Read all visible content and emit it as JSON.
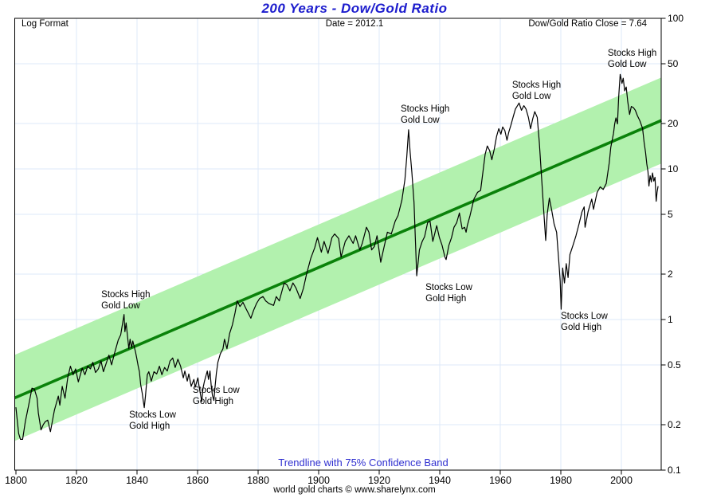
{
  "header": {
    "title": "200 Years - Dow/Gold Ratio",
    "top_left": "Log Format",
    "top_center": "Date = 2012.1",
    "top_right": "Dow/Gold Ratio Close = 7.64"
  },
  "footer": {
    "caption": "Trendline with 75% Confidence Band",
    "credit": "world gold charts © www.sharelynx.com"
  },
  "colors": {
    "title_blue": "#1c1ccd",
    "caption_blue": "#3030d0",
    "band_green": "#b2f1ae",
    "trend_green": "#0a820a",
    "grid_blue": "#dde9f8",
    "data_line": "#000000",
    "axis_black": "#000000"
  },
  "chart_data": {
    "type": "line",
    "title": "200 Years - Dow/Gold Ratio",
    "xlabel": "",
    "ylabel": "",
    "x_axis": {
      "min": 1799.6,
      "max": 2013.2,
      "ticks": [
        1800,
        1820,
        1840,
        1860,
        1880,
        1900,
        1920,
        1940,
        1960,
        1980,
        2000
      ]
    },
    "y_axis": {
      "scale": "log",
      "min": 0.1,
      "max": 100,
      "ticks": [
        {
          "v": 100,
          "label": "100"
        },
        {
          "v": 50,
          "label": "50"
        },
        {
          "v": 20,
          "label": "20"
        },
        {
          "v": 10,
          "label": "10"
        },
        {
          "v": 5,
          "label": "5"
        },
        {
          "v": 2,
          "label": "2"
        },
        {
          "v": 1,
          "label": "1"
        },
        {
          "v": 0.5,
          "label": "0.5"
        },
        {
          "v": 0.2,
          "label": "0.2"
        },
        {
          "v": 0.1,
          "label": "0.1"
        }
      ]
    },
    "grid": true,
    "legend": "none",
    "trendline": {
      "x1": 1800,
      "v1": 0.304,
      "x2": 2012.3,
      "v2": 20.6,
      "band_factor": 1.93
    },
    "series": [
      {
        "name": "Dow/Gold Ratio",
        "points": [
          [
            1800.0,
            0.26
          ],
          [
            1800.9,
            0.175
          ],
          [
            1801.5,
            0.16
          ],
          [
            1802.2,
            0.16
          ],
          [
            1803.1,
            0.21
          ],
          [
            1804.2,
            0.27
          ],
          [
            1805.3,
            0.35
          ],
          [
            1806.1,
            0.345
          ],
          [
            1807.0,
            0.3
          ],
          [
            1807.4,
            0.24
          ],
          [
            1808.3,
            0.185
          ],
          [
            1809.0,
            0.2
          ],
          [
            1809.7,
            0.21
          ],
          [
            1810.5,
            0.215
          ],
          [
            1811.4,
            0.18
          ],
          [
            1812.7,
            0.25
          ],
          [
            1813.6,
            0.29
          ],
          [
            1814.0,
            0.31
          ],
          [
            1814.5,
            0.27
          ],
          [
            1815.3,
            0.36
          ],
          [
            1816.2,
            0.3
          ],
          [
            1817.1,
            0.41
          ],
          [
            1818.0,
            0.49
          ],
          [
            1818.9,
            0.43
          ],
          [
            1819.7,
            0.47
          ],
          [
            1820.6,
            0.385
          ],
          [
            1821.9,
            0.475
          ],
          [
            1822.8,
            0.43
          ],
          [
            1823.7,
            0.49
          ],
          [
            1824.6,
            0.47
          ],
          [
            1825.4,
            0.52
          ],
          [
            1826.3,
            0.445
          ],
          [
            1827.2,
            0.47
          ],
          [
            1828.1,
            0.53
          ],
          [
            1828.9,
            0.45
          ],
          [
            1829.8,
            0.51
          ],
          [
            1830.7,
            0.58
          ],
          [
            1831.6,
            0.5
          ],
          [
            1832.5,
            0.59
          ],
          [
            1833.8,
            0.73
          ],
          [
            1834.6,
            0.79
          ],
          [
            1835.7,
            1.08
          ],
          [
            1836.0,
            0.83
          ],
          [
            1836.4,
            0.95
          ],
          [
            1837.3,
            0.64
          ],
          [
            1837.7,
            0.74
          ],
          [
            1838.2,
            0.65
          ],
          [
            1838.6,
            0.72
          ],
          [
            1839.5,
            0.61
          ],
          [
            1839.9,
            0.555
          ],
          [
            1840.4,
            0.49
          ],
          [
            1840.8,
            0.45
          ],
          [
            1841.2,
            0.37
          ],
          [
            1841.7,
            0.325
          ],
          [
            1842.1,
            0.285
          ],
          [
            1842.4,
            0.26
          ],
          [
            1842.8,
            0.31
          ],
          [
            1843.4,
            0.43
          ],
          [
            1843.9,
            0.45
          ],
          [
            1844.7,
            0.39
          ],
          [
            1845.6,
            0.45
          ],
          [
            1846.5,
            0.435
          ],
          [
            1847.4,
            0.49
          ],
          [
            1848.2,
            0.43
          ],
          [
            1849.1,
            0.48
          ],
          [
            1850.0,
            0.455
          ],
          [
            1850.9,
            0.53
          ],
          [
            1851.8,
            0.555
          ],
          [
            1852.6,
            0.48
          ],
          [
            1853.5,
            0.545
          ],
          [
            1854.4,
            0.49
          ],
          [
            1855.3,
            0.41
          ],
          [
            1855.8,
            0.455
          ],
          [
            1856.6,
            0.39
          ],
          [
            1857.1,
            0.435
          ],
          [
            1857.9,
            0.36
          ],
          [
            1858.8,
            0.4
          ],
          [
            1859.2,
            0.355
          ],
          [
            1860.1,
            0.41
          ],
          [
            1860.5,
            0.36
          ],
          [
            1861.0,
            0.315
          ],
          [
            1861.4,
            0.285
          ],
          [
            1861.8,
            0.35
          ],
          [
            1862.3,
            0.39
          ],
          [
            1863.2,
            0.455
          ],
          [
            1863.6,
            0.4
          ],
          [
            1864.1,
            0.455
          ],
          [
            1864.5,
            0.365
          ],
          [
            1864.9,
            0.315
          ],
          [
            1865.4,
            0.29
          ],
          [
            1865.8,
            0.36
          ],
          [
            1866.2,
            0.44
          ],
          [
            1866.7,
            0.52
          ],
          [
            1867.5,
            0.59
          ],
          [
            1868.4,
            0.64
          ],
          [
            1868.9,
            0.74
          ],
          [
            1869.7,
            0.64
          ],
          [
            1870.6,
            0.81
          ],
          [
            1871.5,
            0.92
          ],
          [
            1872.4,
            1.11
          ],
          [
            1873.1,
            1.33
          ],
          [
            1874.0,
            1.22
          ],
          [
            1875.0,
            1.3
          ],
          [
            1876.0,
            1.18
          ],
          [
            1877.6,
            1.02
          ],
          [
            1878.5,
            1.15
          ],
          [
            1879.5,
            1.28
          ],
          [
            1880.5,
            1.38
          ],
          [
            1881.6,
            1.42
          ],
          [
            1882.5,
            1.33
          ],
          [
            1883.5,
            1.28
          ],
          [
            1885.1,
            1.24
          ],
          [
            1886.0,
            1.42
          ],
          [
            1887.0,
            1.33
          ],
          [
            1888.6,
            1.75
          ],
          [
            1889.5,
            1.7
          ],
          [
            1890.5,
            1.55
          ],
          [
            1891.5,
            1.75
          ],
          [
            1892.5,
            1.62
          ],
          [
            1893.9,
            1.38
          ],
          [
            1895.0,
            1.62
          ],
          [
            1896.0,
            2.0
          ],
          [
            1897.4,
            2.55
          ],
          [
            1898.7,
            3.0
          ],
          [
            1899.6,
            3.5
          ],
          [
            1900.9,
            2.8
          ],
          [
            1901.8,
            3.3
          ],
          [
            1903.1,
            2.75
          ],
          [
            1904.4,
            3.5
          ],
          [
            1905.3,
            3.7
          ],
          [
            1906.6,
            3.45
          ],
          [
            1907.4,
            2.6
          ],
          [
            1908.8,
            3.3
          ],
          [
            1910.0,
            3.6
          ],
          [
            1911.4,
            3.2
          ],
          [
            1912.2,
            3.6
          ],
          [
            1913.6,
            2.9
          ],
          [
            1914.4,
            3.2
          ],
          [
            1915.8,
            4.1
          ],
          [
            1916.6,
            3.8
          ],
          [
            1917.5,
            2.9
          ],
          [
            1918.4,
            3.05
          ],
          [
            1919.3,
            3.6
          ],
          [
            1920.5,
            2.4
          ],
          [
            1921.4,
            2.9
          ],
          [
            1922.7,
            3.8
          ],
          [
            1924.0,
            3.7
          ],
          [
            1925.3,
            4.5
          ],
          [
            1926.2,
            4.9
          ],
          [
            1927.5,
            6.2
          ],
          [
            1928.5,
            8.5
          ],
          [
            1929.1,
            12.0
          ],
          [
            1929.7,
            18.2
          ],
          [
            1930.2,
            13.0
          ],
          [
            1930.8,
            9.5
          ],
          [
            1931.5,
            6.0
          ],
          [
            1932.0,
            3.2
          ],
          [
            1932.4,
            1.95
          ],
          [
            1933.3,
            2.9
          ],
          [
            1934.2,
            3.3
          ],
          [
            1935.0,
            3.55
          ],
          [
            1936.0,
            4.4
          ],
          [
            1936.8,
            4.5
          ],
          [
            1937.7,
            3.3
          ],
          [
            1938.6,
            3.9
          ],
          [
            1939.0,
            4.2
          ],
          [
            1939.9,
            3.5
          ],
          [
            1940.8,
            3.1
          ],
          [
            1941.7,
            2.6
          ],
          [
            1942.1,
            2.5
          ],
          [
            1943.0,
            3.1
          ],
          [
            1943.9,
            3.5
          ],
          [
            1944.7,
            4.1
          ],
          [
            1945.6,
            4.4
          ],
          [
            1946.5,
            5.1
          ],
          [
            1947.4,
            4.0
          ],
          [
            1948.2,
            4.1
          ],
          [
            1948.7,
            3.8
          ],
          [
            1949.1,
            4.2
          ],
          [
            1950.0,
            4.9
          ],
          [
            1951.3,
            6.3
          ],
          [
            1952.5,
            7.0
          ],
          [
            1953.5,
            7.2
          ],
          [
            1954.4,
            10.0
          ],
          [
            1955.0,
            12.5
          ],
          [
            1955.7,
            14.2
          ],
          [
            1956.5,
            13.2
          ],
          [
            1957.2,
            11.5
          ],
          [
            1958.0,
            13.5
          ],
          [
            1958.8,
            16.5
          ],
          [
            1959.5,
            18.5
          ],
          [
            1960.2,
            17.0
          ],
          [
            1960.8,
            19.0
          ],
          [
            1961.5,
            18.0
          ],
          [
            1962.2,
            15.5
          ],
          [
            1962.8,
            17.5
          ],
          [
            1963.5,
            19.5
          ],
          [
            1964.2,
            22.0
          ],
          [
            1965.0,
            25.0
          ],
          [
            1966.2,
            27.4
          ],
          [
            1967.0,
            24.5
          ],
          [
            1967.8,
            26.3
          ],
          [
            1968.5,
            25.0
          ],
          [
            1969.3,
            22.0
          ],
          [
            1970.0,
            18.5
          ],
          [
            1970.7,
            21.5
          ],
          [
            1971.4,
            24.0
          ],
          [
            1972.2,
            22.0
          ],
          [
            1972.9,
            15.0
          ],
          [
            1973.6,
            9.0
          ],
          [
            1974.3,
            5.5
          ],
          [
            1975.0,
            3.35
          ],
          [
            1975.5,
            5.0
          ],
          [
            1976.2,
            6.4
          ],
          [
            1977.0,
            5.3
          ],
          [
            1977.8,
            4.3
          ],
          [
            1978.6,
            3.8
          ],
          [
            1979.3,
            2.5
          ],
          [
            1979.8,
            1.8
          ],
          [
            1980.1,
            1.17
          ],
          [
            1980.6,
            2.2
          ],
          [
            1981.2,
            1.75
          ],
          [
            1981.8,
            2.35
          ],
          [
            1982.4,
            1.9
          ],
          [
            1983.0,
            2.7
          ],
          [
            1984.0,
            3.1
          ],
          [
            1985.0,
            3.6
          ],
          [
            1986.0,
            4.3
          ],
          [
            1987.0,
            5.2
          ],
          [
            1987.7,
            5.6
          ],
          [
            1988.0,
            4.1
          ],
          [
            1989.0,
            5.2
          ],
          [
            1990.2,
            6.3
          ],
          [
            1990.8,
            5.4
          ],
          [
            1992.0,
            7.0
          ],
          [
            1993.0,
            7.6
          ],
          [
            1994.0,
            7.3
          ],
          [
            1995.0,
            8.0
          ],
          [
            1996.0,
            11.0
          ],
          [
            1996.5,
            13.9
          ],
          [
            1997.4,
            17.2
          ],
          [
            1997.8,
            19.9
          ],
          [
            1998.2,
            21.8
          ],
          [
            1998.7,
            19.9
          ],
          [
            1999.1,
            29.9
          ],
          [
            1999.6,
            42.4
          ],
          [
            2000.2,
            37.0
          ],
          [
            2000.6,
            40.0
          ],
          [
            2001.1,
            33.0
          ],
          [
            2001.6,
            35.0
          ],
          [
            2002.1,
            28.0
          ],
          [
            2002.7,
            23.0
          ],
          [
            2003.3,
            26.0
          ],
          [
            2004.0,
            25.5
          ],
          [
            2004.6,
            24.5
          ],
          [
            2005.3,
            22.6
          ],
          [
            2006.1,
            20.9
          ],
          [
            2007.0,
            18.6
          ],
          [
            2007.5,
            15.1
          ],
          [
            2008.0,
            12.8
          ],
          [
            2008.4,
            10.8
          ],
          [
            2008.8,
            9.6
          ],
          [
            2009.1,
            7.7
          ],
          [
            2009.5,
            9.0
          ],
          [
            2009.9,
            8.2
          ],
          [
            2010.3,
            9.4
          ],
          [
            2010.7,
            8.3
          ],
          [
            2011.1,
            8.8
          ],
          [
            2011.5,
            6.1
          ],
          [
            2011.8,
            7.0
          ],
          [
            2012.1,
            7.64
          ]
        ]
      }
    ],
    "annotations": [
      {
        "lines": [
          "Stocks High",
          "Gold Low"
        ],
        "year": 1828.2,
        "value": 1.59
      },
      {
        "lines": [
          "Stocks Low",
          "Gold High"
        ],
        "year": 1837.4,
        "value": 0.252
      },
      {
        "lines": [
          "Stocks Low",
          "Gold High"
        ],
        "year": 1858.4,
        "value": 0.368
      },
      {
        "lines": [
          "Stocks High",
          "Gold Low"
        ],
        "year": 1927.1,
        "value": 27.2
      },
      {
        "lines": [
          "Stocks Low",
          "Gold High"
        ],
        "year": 1935.3,
        "value": 1.77
      },
      {
        "lines": [
          "Stocks High",
          "Gold Low"
        ],
        "year": 1963.9,
        "value": 39.1
      },
      {
        "lines": [
          "Stocks Low",
          "Gold High"
        ],
        "year": 1980.0,
        "value": 1.14
      },
      {
        "lines": [
          "Stocks High",
          "Gold Low"
        ],
        "year": 1995.5,
        "value": 63.7
      }
    ]
  }
}
